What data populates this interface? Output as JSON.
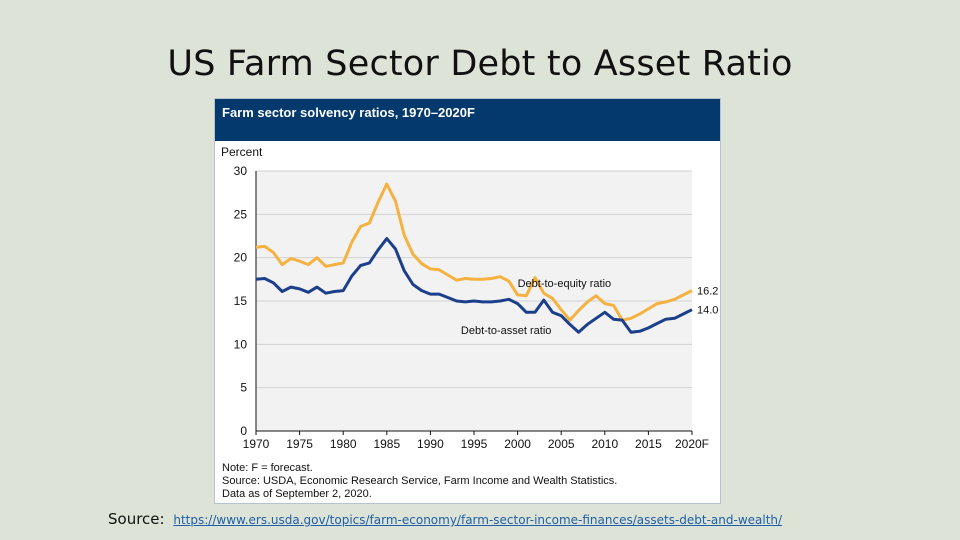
{
  "slide": {
    "title": "US Farm Sector Debt to Asset Ratio",
    "source_label": "Source:",
    "source_url": "https://www.ers.usda.gov/topics/farm-economy/farm-sector-income-finances/assets-debt-and-wealth/"
  },
  "figure": {
    "title": "Farm sector solvency ratios, 1970–2020F",
    "notes": [
      "Note: F = forecast.",
      "Source: USDA, Economic Research Service, Farm Income and Wealth Statistics.",
      "Data as of September 2, 2020."
    ]
  },
  "colors": {
    "header": "#03396c",
    "debt_to_equity": "#f6b240",
    "debt_to_asset": "#1c3f8c",
    "plot_bg": "#f2f2f2",
    "grid": "#d2d2d2"
  },
  "chart_data": {
    "type": "line",
    "title": "Farm sector solvency ratios, 1970–2020F",
    "ylabel": "Percent",
    "xlim": [
      1970,
      2020
    ],
    "ylim": [
      0,
      30
    ],
    "yticks": [
      0,
      5,
      10,
      15,
      20,
      25,
      30
    ],
    "xticks": [
      {
        "value": 1970,
        "label": "1970"
      },
      {
        "value": 1975,
        "label": "1975"
      },
      {
        "value": 1980,
        "label": "1980"
      },
      {
        "value": 1985,
        "label": "1985"
      },
      {
        "value": 1990,
        "label": "1990"
      },
      {
        "value": 1995,
        "label": "1995"
      },
      {
        "value": 2000,
        "label": "2000"
      },
      {
        "value": 2005,
        "label": "2005"
      },
      {
        "value": 2010,
        "label": "2010"
      },
      {
        "value": 2015,
        "label": "2015"
      },
      {
        "value": 2020,
        "label": "2020F"
      }
    ],
    "grid": true,
    "x": [
      1970,
      1971,
      1972,
      1973,
      1974,
      1975,
      1976,
      1977,
      1978,
      1979,
      1980,
      1981,
      1982,
      1983,
      1984,
      1985,
      1986,
      1987,
      1988,
      1989,
      1990,
      1991,
      1992,
      1993,
      1994,
      1995,
      1996,
      1997,
      1998,
      1999,
      2000,
      2001,
      2002,
      2003,
      2004,
      2005,
      2006,
      2007,
      2008,
      2009,
      2010,
      2011,
      2012,
      2013,
      2014,
      2015,
      2016,
      2017,
      2018,
      2019,
      2020
    ],
    "series": [
      {
        "name": "Debt-to-equity ratio",
        "color": "#f6b240",
        "values": [
          21.2,
          21.3,
          20.6,
          19.2,
          19.9,
          19.6,
          19.2,
          20.0,
          19.0,
          19.2,
          19.4,
          21.8,
          23.6,
          24.0,
          26.4,
          28.5,
          26.5,
          22.6,
          20.4,
          19.3,
          18.7,
          18.6,
          18.0,
          17.4,
          17.6,
          17.5,
          17.5,
          17.6,
          17.8,
          17.3,
          15.7,
          15.6,
          17.7,
          15.9,
          15.3,
          14.0,
          12.8,
          13.9,
          14.9,
          15.6,
          14.7,
          14.5,
          12.8,
          13.0,
          13.5,
          14.1,
          14.7,
          14.9,
          15.2,
          15.7,
          16.2
        ],
        "end_label": "16.2",
        "label_x": 2000,
        "label_y": 16.6
      },
      {
        "name": "Debt-to-asset ratio",
        "color": "#1c3f8c",
        "values": [
          17.5,
          17.6,
          17.1,
          16.1,
          16.6,
          16.4,
          16.0,
          16.6,
          15.9,
          16.1,
          16.2,
          17.9,
          19.1,
          19.4,
          20.9,
          22.2,
          21.0,
          18.5,
          16.9,
          16.2,
          15.8,
          15.8,
          15.4,
          15.0,
          14.9,
          15.0,
          14.9,
          14.9,
          15.0,
          15.2,
          14.7,
          13.7,
          13.7,
          15.1,
          13.7,
          13.3,
          12.3,
          11.4,
          12.3,
          13.0,
          13.7,
          12.9,
          12.8,
          11.4,
          11.5,
          11.9,
          12.4,
          12.9,
          13.0,
          13.5,
          14.0
        ],
        "end_label": "14.0",
        "label_x": 1993.5,
        "label_y": 11.2
      }
    ]
  }
}
